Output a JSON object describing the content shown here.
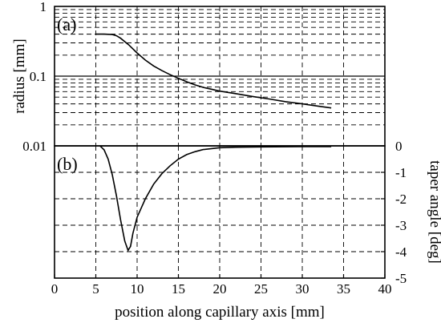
{
  "chart_data": [
    {
      "type": "line",
      "panel_label": "(a)",
      "xlabel": "position along capillary axis [mm]",
      "ylabel": "radius [mm]",
      "yscale": "log",
      "xlim": [
        0,
        40
      ],
      "ylim": [
        0.01,
        1
      ],
      "x_ticks": [
        "0",
        "5",
        "10",
        "15",
        "20",
        "25",
        "30",
        "35",
        "40"
      ],
      "y_ticks": [
        {
          "value": 1,
          "label": "1"
        },
        {
          "value": 0.1,
          "label": "0.1"
        },
        {
          "value": 0.01,
          "label": "0.01"
        }
      ],
      "grid": true,
      "x": [
        5,
        6,
        7,
        7.5,
        8,
        9,
        10,
        11,
        12,
        13,
        14,
        15,
        16,
        17,
        18,
        19,
        20,
        22,
        24,
        26,
        28,
        30,
        32,
        33.5
      ],
      "y": [
        0.4,
        0.4,
        0.395,
        0.38,
        0.35,
        0.28,
        0.215,
        0.17,
        0.14,
        0.12,
        0.105,
        0.093,
        0.083,
        0.075,
        0.069,
        0.065,
        0.061,
        0.056,
        0.051,
        0.047,
        0.043,
        0.04,
        0.037,
        0.035
      ]
    },
    {
      "type": "line",
      "panel_label": "(b)",
      "xlabel": "position along capillary axis [mm]",
      "ylabel": "taper angle [deg]",
      "xlim": [
        0,
        40
      ],
      "ylim": [
        -5,
        0
      ],
      "y_ticks": [
        "0",
        "-1",
        "-2",
        "-3",
        "-4",
        "-5"
      ],
      "grid": true,
      "x": [
        5.5,
        6,
        6.5,
        7,
        7.5,
        8,
        8.5,
        8.9,
        9.2,
        9.5,
        10,
        11,
        12,
        13,
        14,
        15,
        16,
        17,
        18,
        20,
        22,
        25,
        30,
        33.5
      ],
      "y": [
        0,
        -0.15,
        -0.5,
        -1.1,
        -1.9,
        -2.8,
        -3.6,
        -3.95,
        -3.8,
        -3.3,
        -2.7,
        -2.0,
        -1.45,
        -1.05,
        -0.75,
        -0.5,
        -0.33,
        -0.22,
        -0.14,
        -0.07,
        -0.05,
        -0.04,
        -0.03,
        -0.03
      ]
    }
  ]
}
